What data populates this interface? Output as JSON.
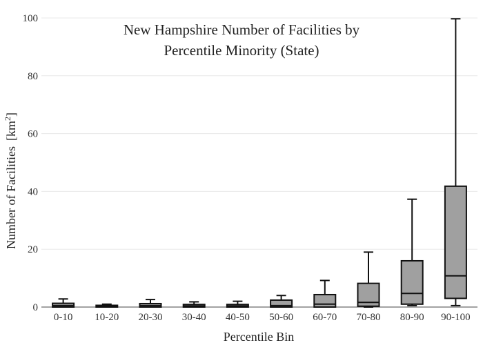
{
  "chart_data": {
    "type": "box",
    "title_lines": [
      "New Hampshire Number of Facilities by",
      "Percentile Minority (State)"
    ],
    "xlabel": "Percentile Bin",
    "ylabel": "Number of Facilities",
    "ylabel_unit": "[km",
    "ylabel_unit_sup": "2",
    "ylabel_unit_close": "]",
    "ylim": [
      0,
      100
    ],
    "yticks": [
      0,
      20,
      40,
      60,
      80,
      100
    ],
    "grid": true,
    "box_color": "#a0a0a0",
    "line_color": "#111111",
    "categories": [
      "0-10",
      "10-20",
      "20-30",
      "30-40",
      "40-50",
      "50-60",
      "60-70",
      "70-80",
      "80-90",
      "90-100"
    ],
    "boxes": [
      {
        "min": 0,
        "q1": 0,
        "median": 0.5,
        "q3": 1.3,
        "max": 2.8
      },
      {
        "min": 0,
        "q1": 0,
        "median": 0.3,
        "q3": 0.6,
        "max": 1.0
      },
      {
        "min": 0,
        "q1": 0,
        "median": 0.5,
        "q3": 1.2,
        "max": 2.6
      },
      {
        "min": 0,
        "q1": 0,
        "median": 0.4,
        "q3": 0.9,
        "max": 1.8
      },
      {
        "min": 0,
        "q1": 0,
        "median": 0.4,
        "q3": 0.9,
        "max": 2.0
      },
      {
        "min": 0,
        "q1": 0,
        "median": 0.5,
        "q3": 2.4,
        "max": 4.0
      },
      {
        "min": 0,
        "q1": 0,
        "median": 1.0,
        "q3": 4.3,
        "max": 9.2
      },
      {
        "min": 0,
        "q1": 0.3,
        "median": 1.6,
        "q3": 8.2,
        "max": 19.0
      },
      {
        "min": 0.5,
        "q1": 1.0,
        "median": 4.7,
        "q3": 16.0,
        "max": 37.3
      },
      {
        "min": 0.5,
        "q1": 3.0,
        "median": 10.8,
        "q3": 41.8,
        "max": 99.7
      }
    ]
  }
}
